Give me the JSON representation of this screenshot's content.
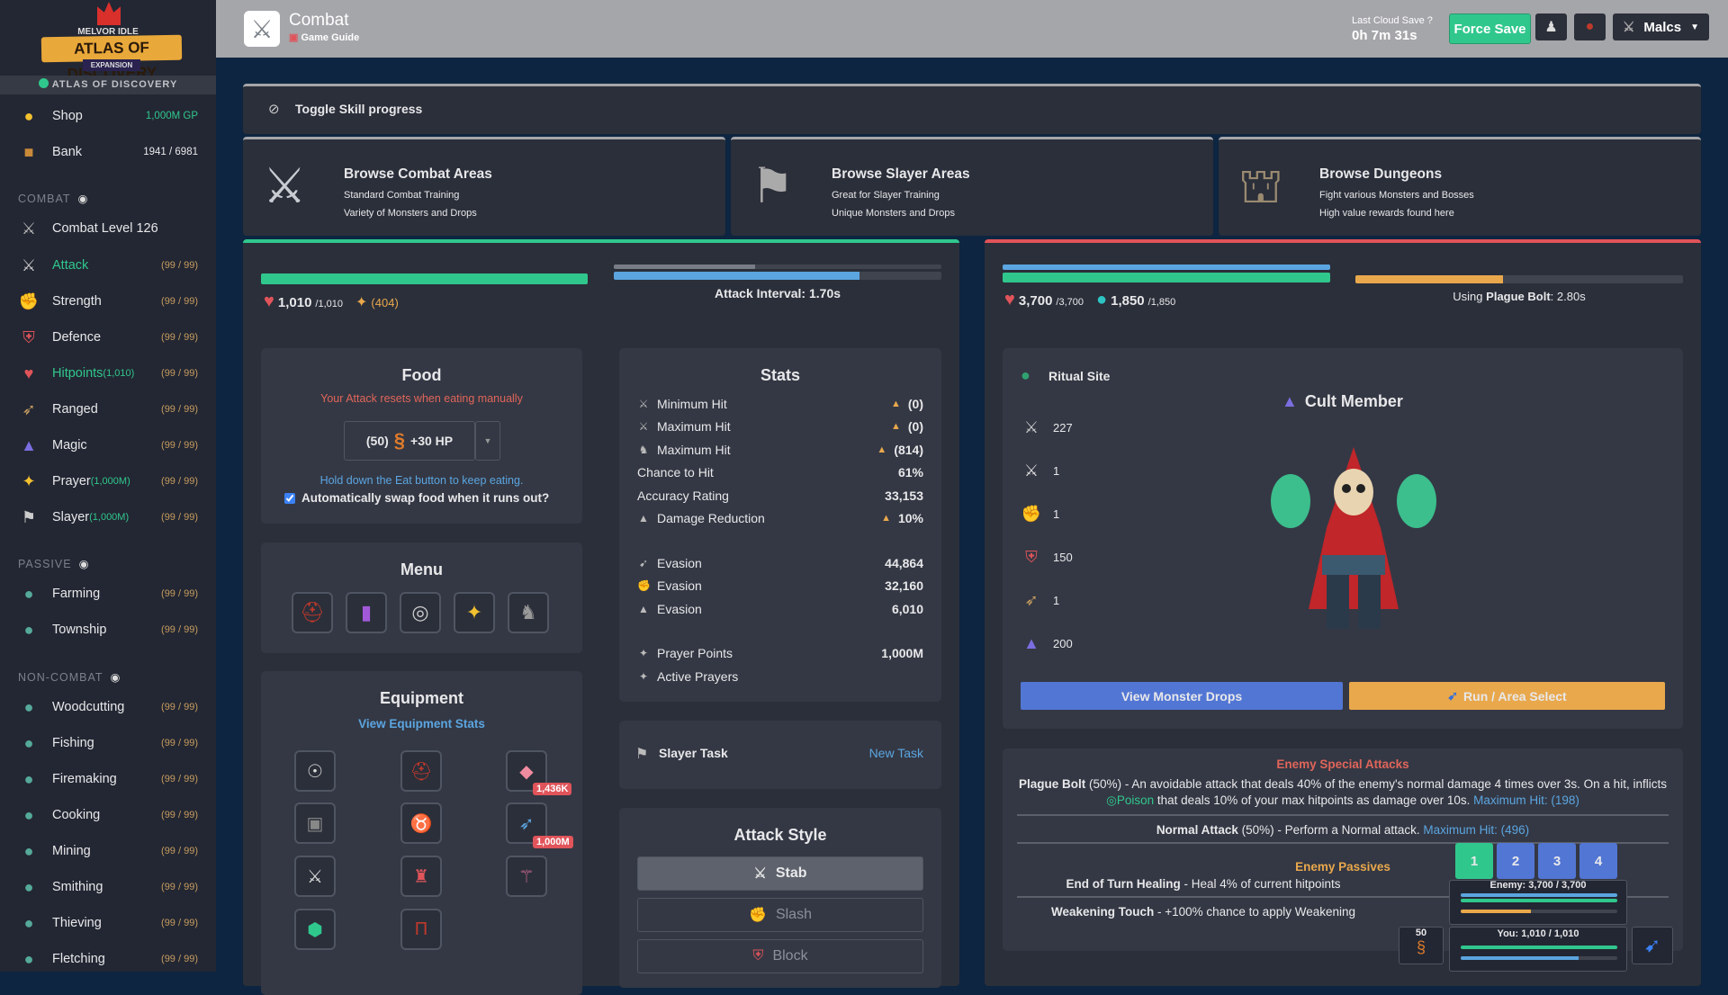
{
  "logo": {
    "game": "MELVOR IDLE",
    "title": "ATLAS OF DISCOVERY",
    "subtitle": "EXPANSION"
  },
  "expansion_banner": "ATLAS OF DISCOVERY",
  "sidebar": {
    "shop": {
      "label": "Shop",
      "value": "1,000M GP"
    },
    "bank": {
      "label": "Bank",
      "value": "1941 / 6981"
    },
    "sections": {
      "combat": "COMBAT",
      "passive": "PASSIVE",
      "noncombat": "NON-COMBAT"
    },
    "combat_level": "Combat Level 126",
    "combat": [
      {
        "label": "Attack",
        "level": "(99 / 99)",
        "icon": "sword-icon"
      },
      {
        "label": "Strength",
        "level": "(99 / 99)",
        "icon": "strength-icon"
      },
      {
        "label": "Defence",
        "level": "(99 / 99)",
        "icon": "shield-icon"
      },
      {
        "label": "Hitpoints",
        "sub": "(1,010)",
        "level": "(99 / 99)",
        "icon": "heart-icon"
      },
      {
        "label": "Ranged",
        "level": "(99 / 99)",
        "icon": "bow-icon"
      },
      {
        "label": "Magic",
        "level": "(99 / 99)",
        "icon": "wizard-hat-icon"
      },
      {
        "label": "Prayer",
        "sub": "(1,000M)",
        "level": "(99 / 99)",
        "icon": "prayer-icon"
      },
      {
        "label": "Slayer",
        "sub": "(1,000M)",
        "level": "(99 / 99)",
        "icon": "slayer-icon"
      }
    ],
    "passive": [
      {
        "label": "Farming",
        "level": "(99 / 99)"
      },
      {
        "label": "Township",
        "level": "(99 / 99)"
      }
    ],
    "noncombat": [
      {
        "label": "Woodcutting",
        "level": "(99 / 99)"
      },
      {
        "label": "Fishing",
        "level": "(99 / 99)"
      },
      {
        "label": "Firemaking",
        "level": "(99 / 99)"
      },
      {
        "label": "Cooking",
        "level": "(99 / 99)"
      },
      {
        "label": "Mining",
        "level": "(99 / 99)"
      },
      {
        "label": "Smithing",
        "level": "(99 / 99)"
      },
      {
        "label": "Thieving",
        "level": "(99 / 99)"
      },
      {
        "label": "Fletching",
        "level": "(99 / 99)"
      }
    ]
  },
  "header": {
    "title": "Combat",
    "guide": "Game Guide",
    "cloud_label": "Last Cloud Save",
    "cloud_time": "0h 7m 31s",
    "force_save": "Force Save",
    "character": "Malcs"
  },
  "toggle_skill": "Toggle Skill progress",
  "browse": [
    {
      "title": "Browse Combat Areas",
      "line1": "Standard Combat Training",
      "line2": "Variety of Monsters and Drops"
    },
    {
      "title": "Browse Slayer Areas",
      "line1": "Great for Slayer Training",
      "line2": "Unique Monsters and Drops"
    },
    {
      "title": "Browse Dungeons",
      "line1": "Fight various Monsters and Bosses",
      "line2": "High value rewards found here"
    }
  ],
  "player": {
    "hp": "1,010",
    "hp_max": "/1,010",
    "prayer": "(404)",
    "hp_pct": 100,
    "attack_progress_pct": 75,
    "attack_interval": "Attack Interval: 1.70s"
  },
  "food": {
    "title": "Food",
    "warning": "Your Attack resets when eating manually",
    "qty": "(50)",
    "heal": "+30 HP",
    "hint": "Hold down the Eat button to keep eating.",
    "auto_swap": "Automatically swap food when it runs out?",
    "auto_swap_checked": true
  },
  "menu": {
    "title": "Menu"
  },
  "equipment": {
    "title": "Equipment",
    "view_stats": "View Equipment Stats",
    "badges": [
      "1,436K",
      "1,000M"
    ]
  },
  "stats": {
    "title": "Stats",
    "rows": [
      {
        "k": "Minimum Hit",
        "v": "(0)"
      },
      {
        "k": "Maximum Hit",
        "v": "(0)"
      },
      {
        "k": "Maximum Hit",
        "v": "(814)"
      },
      {
        "k": "Chance to Hit",
        "v": "61%"
      },
      {
        "k": "Accuracy Rating",
        "v": "33,153"
      },
      {
        "k": "Damage Reduction",
        "v": "10%"
      },
      {
        "k": "Evasion",
        "v": "44,864"
      },
      {
        "k": "Evasion",
        "v": "32,160"
      },
      {
        "k": "Evasion",
        "v": "6,010"
      },
      {
        "k": "Prayer Points",
        "v": "1,000M"
      },
      {
        "k": "Active Prayers",
        "v": ""
      }
    ]
  },
  "slayer": {
    "label": "Slayer Task",
    "new_task": "New Task"
  },
  "attack_style": {
    "title": "Attack Style",
    "options": [
      "Stab",
      "Slash",
      "Block"
    ],
    "selected": "Stab"
  },
  "enemy": {
    "hp": "3,700",
    "hp_max": "/3,700",
    "barrier": "1,850",
    "barrier_max": "/1,850",
    "attack_progress_pct": 45,
    "using": "Using",
    "using_attack": "Plague Bolt",
    "using_time": ": 2.80s",
    "area": "Ritual Site",
    "name": "Cult Member",
    "stats": [
      "227",
      "1",
      "1",
      "150",
      "1",
      "200"
    ],
    "view_drops": "View Monster Drops",
    "run": "Run / Area Select"
  },
  "specials": {
    "title": "Enemy Special Attacks",
    "s1_name": "Plague Bolt",
    "s1_pct": " (50%)",
    "s1_text": " - An avoidable attack that deals 40% of the enemy's normal damage 4 times over 3s. On a hit, inflicts ",
    "s1_effect": "Poison",
    "s1_text2": " that deals 10% of your max hitpoints as damage over 10s. ",
    "s1_max": "Maximum Hit: (198)",
    "s2_name": "Normal Attack",
    "s2_pct": " (50%)",
    "s2_text": " - Perform a Normal attack. ",
    "s2_max": "Maximum Hit: (496)",
    "passives_title": "Enemy Passives",
    "p1_name": "End of Turn Healing",
    "p1_text": " - Heal 4% of current hitpoints",
    "p2_name": "Weakening Touch",
    "p2_text": " - +100% chance to apply Weakening"
  },
  "mini": {
    "tabs": [
      "1",
      "2",
      "3",
      "4"
    ],
    "enemy": "Enemy: 3,700 / 3,700",
    "you": "You: 1,010 / 1,010",
    "food_qty": "50"
  },
  "colors": {
    "green": "#30c78d",
    "blue": "#5ba5e0",
    "orange": "#e9a84c",
    "red": "#e0545a",
    "primary": "#5276d4"
  }
}
